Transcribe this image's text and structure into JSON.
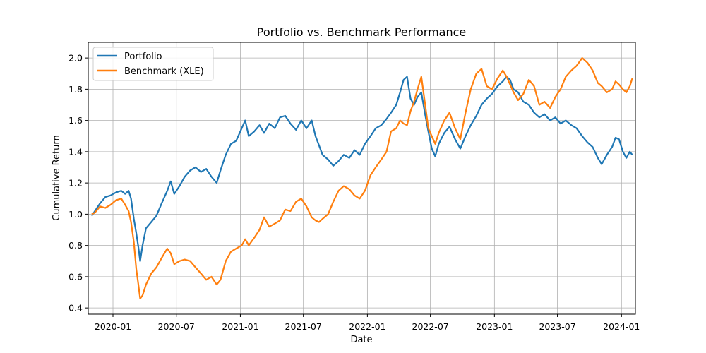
{
  "chart_data": {
    "type": "line",
    "title": "Portfolio vs. Benchmark Performance",
    "xlabel": "Date",
    "ylabel": "Cumulative Return",
    "x_range": [
      "2019-10-22",
      "2024-02-10"
    ],
    "ylim": [
      0.36,
      2.1
    ],
    "x_ticks": [
      "2020-01",
      "2020-07",
      "2021-01",
      "2021-07",
      "2022-01",
      "2022-07",
      "2023-01",
      "2023-07",
      "2024-01"
    ],
    "y_ticks": [
      0.4,
      0.6,
      0.8,
      1.0,
      1.2,
      1.4,
      1.6,
      1.8,
      2.0
    ],
    "grid": true,
    "legend_position": "top-left",
    "series": [
      {
        "name": "Portfolio",
        "color": "#1f77b4",
        "points": [
          [
            "2019-11-01",
            0.99
          ],
          [
            "2019-11-10",
            1.02
          ],
          [
            "2019-11-25",
            1.07
          ],
          [
            "2019-12-10",
            1.11
          ],
          [
            "2019-12-25",
            1.12
          ],
          [
            "2020-01-10",
            1.14
          ],
          [
            "2020-01-25",
            1.15
          ],
          [
            "2020-02-05",
            1.13
          ],
          [
            "2020-02-15",
            1.15
          ],
          [
            "2020-02-22",
            1.1
          ],
          [
            "2020-03-01",
            0.97
          ],
          [
            "2020-03-08",
            0.88
          ],
          [
            "2020-03-14",
            0.79
          ],
          [
            "2020-03-19",
            0.7
          ],
          [
            "2020-03-26",
            0.8
          ],
          [
            "2020-04-05",
            0.91
          ],
          [
            "2020-04-20",
            0.95
          ],
          [
            "2020-05-05",
            0.99
          ],
          [
            "2020-05-20",
            1.07
          ],
          [
            "2020-06-05",
            1.15
          ],
          [
            "2020-06-15",
            1.21
          ],
          [
            "2020-06-25",
            1.13
          ],
          [
            "2020-07-10",
            1.18
          ],
          [
            "2020-07-25",
            1.24
          ],
          [
            "2020-08-10",
            1.28
          ],
          [
            "2020-08-25",
            1.3
          ],
          [
            "2020-09-10",
            1.27
          ],
          [
            "2020-09-25",
            1.29
          ],
          [
            "2020-10-10",
            1.24
          ],
          [
            "2020-10-25",
            1.2
          ],
          [
            "2020-11-05",
            1.28
          ],
          [
            "2020-11-20",
            1.38
          ],
          [
            "2020-12-05",
            1.45
          ],
          [
            "2020-12-20",
            1.47
          ],
          [
            "2021-01-05",
            1.55
          ],
          [
            "2021-01-15",
            1.6
          ],
          [
            "2021-01-25",
            1.5
          ],
          [
            "2021-02-10",
            1.53
          ],
          [
            "2021-02-25",
            1.57
          ],
          [
            "2021-03-10",
            1.52
          ],
          [
            "2021-03-25",
            1.58
          ],
          [
            "2021-04-10",
            1.55
          ],
          [
            "2021-04-25",
            1.62
          ],
          [
            "2021-05-10",
            1.63
          ],
          [
            "2021-05-25",
            1.58
          ],
          [
            "2021-06-10",
            1.54
          ],
          [
            "2021-06-25",
            1.6
          ],
          [
            "2021-07-10",
            1.55
          ],
          [
            "2021-07-25",
            1.6
          ],
          [
            "2021-08-05",
            1.5
          ],
          [
            "2021-08-15",
            1.44
          ],
          [
            "2021-08-25",
            1.38
          ],
          [
            "2021-09-10",
            1.35
          ],
          [
            "2021-09-25",
            1.31
          ],
          [
            "2021-10-10",
            1.34
          ],
          [
            "2021-10-25",
            1.38
          ],
          [
            "2021-11-10",
            1.36
          ],
          [
            "2021-11-25",
            1.41
          ],
          [
            "2021-12-10",
            1.38
          ],
          [
            "2021-12-25",
            1.45
          ],
          [
            "2022-01-10",
            1.5
          ],
          [
            "2022-01-25",
            1.55
          ],
          [
            "2022-02-10",
            1.57
          ],
          [
            "2022-02-25",
            1.61
          ],
          [
            "2022-03-10",
            1.65
          ],
          [
            "2022-03-25",
            1.7
          ],
          [
            "2022-04-05",
            1.78
          ],
          [
            "2022-04-15",
            1.86
          ],
          [
            "2022-04-25",
            1.88
          ],
          [
            "2022-05-05",
            1.74
          ],
          [
            "2022-05-15",
            1.7
          ],
          [
            "2022-05-25",
            1.75
          ],
          [
            "2022-06-05",
            1.78
          ],
          [
            "2022-06-15",
            1.65
          ],
          [
            "2022-06-25",
            1.53
          ],
          [
            "2022-07-05",
            1.42
          ],
          [
            "2022-07-15",
            1.37
          ],
          [
            "2022-07-25",
            1.45
          ],
          [
            "2022-08-10",
            1.52
          ],
          [
            "2022-08-25",
            1.56
          ],
          [
            "2022-09-10",
            1.48
          ],
          [
            "2022-09-25",
            1.42
          ],
          [
            "2022-10-10",
            1.5
          ],
          [
            "2022-10-25",
            1.57
          ],
          [
            "2022-11-10",
            1.63
          ],
          [
            "2022-11-25",
            1.7
          ],
          [
            "2022-12-10",
            1.74
          ],
          [
            "2022-12-25",
            1.77
          ],
          [
            "2023-01-10",
            1.82
          ],
          [
            "2023-01-25",
            1.85
          ],
          [
            "2023-02-05",
            1.88
          ],
          [
            "2023-02-15",
            1.86
          ],
          [
            "2023-02-25",
            1.8
          ],
          [
            "2023-03-10",
            1.78
          ],
          [
            "2023-03-25",
            1.72
          ],
          [
            "2023-04-10",
            1.7
          ],
          [
            "2023-04-25",
            1.65
          ],
          [
            "2023-05-10",
            1.62
          ],
          [
            "2023-05-25",
            1.64
          ],
          [
            "2023-06-10",
            1.6
          ],
          [
            "2023-06-25",
            1.62
          ],
          [
            "2023-07-10",
            1.58
          ],
          [
            "2023-07-25",
            1.6
          ],
          [
            "2023-08-10",
            1.57
          ],
          [
            "2023-08-25",
            1.55
          ],
          [
            "2023-09-10",
            1.5
          ],
          [
            "2023-09-25",
            1.46
          ],
          [
            "2023-10-10",
            1.43
          ],
          [
            "2023-10-25",
            1.36
          ],
          [
            "2023-11-05",
            1.32
          ],
          [
            "2023-11-20",
            1.38
          ],
          [
            "2023-12-05",
            1.43
          ],
          [
            "2023-12-15",
            1.49
          ],
          [
            "2023-12-25",
            1.48
          ],
          [
            "2024-01-05",
            1.4
          ],
          [
            "2024-01-15",
            1.36
          ],
          [
            "2024-01-25",
            1.4
          ],
          [
            "2024-02-01",
            1.38
          ]
        ]
      },
      {
        "name": "Benchmark (XLE)",
        "color": "#ff7f0e",
        "points": [
          [
            "2019-11-01",
            1.0
          ],
          [
            "2019-11-10",
            1.01
          ],
          [
            "2019-11-25",
            1.05
          ],
          [
            "2019-12-10",
            1.04
          ],
          [
            "2019-12-25",
            1.06
          ],
          [
            "2020-01-10",
            1.09
          ],
          [
            "2020-01-25",
            1.1
          ],
          [
            "2020-02-05",
            1.06
          ],
          [
            "2020-02-15",
            1.02
          ],
          [
            "2020-02-22",
            0.95
          ],
          [
            "2020-03-01",
            0.82
          ],
          [
            "2020-03-08",
            0.65
          ],
          [
            "2020-03-14",
            0.55
          ],
          [
            "2020-03-19",
            0.46
          ],
          [
            "2020-03-26",
            0.48
          ],
          [
            "2020-04-05",
            0.55
          ],
          [
            "2020-04-20",
            0.62
          ],
          [
            "2020-05-05",
            0.66
          ],
          [
            "2020-05-20",
            0.72
          ],
          [
            "2020-06-05",
            0.78
          ],
          [
            "2020-06-15",
            0.75
          ],
          [
            "2020-06-25",
            0.68
          ],
          [
            "2020-07-10",
            0.7
          ],
          [
            "2020-07-25",
            0.71
          ],
          [
            "2020-08-10",
            0.7
          ],
          [
            "2020-08-25",
            0.66
          ],
          [
            "2020-09-10",
            0.62
          ],
          [
            "2020-09-25",
            0.58
          ],
          [
            "2020-10-10",
            0.6
          ],
          [
            "2020-10-25",
            0.55
          ],
          [
            "2020-11-05",
            0.58
          ],
          [
            "2020-11-20",
            0.7
          ],
          [
            "2020-12-05",
            0.76
          ],
          [
            "2020-12-20",
            0.78
          ],
          [
            "2021-01-05",
            0.8
          ],
          [
            "2021-01-15",
            0.84
          ],
          [
            "2021-01-25",
            0.8
          ],
          [
            "2021-02-10",
            0.85
          ],
          [
            "2021-02-25",
            0.9
          ],
          [
            "2021-03-10",
            0.98
          ],
          [
            "2021-03-25",
            0.92
          ],
          [
            "2021-04-10",
            0.94
          ],
          [
            "2021-04-25",
            0.96
          ],
          [
            "2021-05-10",
            1.03
          ],
          [
            "2021-05-25",
            1.02
          ],
          [
            "2021-06-10",
            1.08
          ],
          [
            "2021-06-25",
            1.1
          ],
          [
            "2021-07-10",
            1.05
          ],
          [
            "2021-07-25",
            0.98
          ],
          [
            "2021-08-05",
            0.96
          ],
          [
            "2021-08-15",
            0.95
          ],
          [
            "2021-08-25",
            0.97
          ],
          [
            "2021-09-10",
            1.0
          ],
          [
            "2021-09-25",
            1.08
          ],
          [
            "2021-10-10",
            1.15
          ],
          [
            "2021-10-25",
            1.18
          ],
          [
            "2021-11-10",
            1.16
          ],
          [
            "2021-11-25",
            1.12
          ],
          [
            "2021-12-10",
            1.1
          ],
          [
            "2021-12-25",
            1.15
          ],
          [
            "2022-01-10",
            1.25
          ],
          [
            "2022-01-25",
            1.3
          ],
          [
            "2022-02-10",
            1.35
          ],
          [
            "2022-02-25",
            1.4
          ],
          [
            "2022-03-10",
            1.53
          ],
          [
            "2022-03-25",
            1.55
          ],
          [
            "2022-04-05",
            1.6
          ],
          [
            "2022-04-15",
            1.58
          ],
          [
            "2022-04-25",
            1.57
          ],
          [
            "2022-05-05",
            1.66
          ],
          [
            "2022-05-15",
            1.72
          ],
          [
            "2022-05-25",
            1.8
          ],
          [
            "2022-06-05",
            1.88
          ],
          [
            "2022-06-15",
            1.72
          ],
          [
            "2022-06-25",
            1.55
          ],
          [
            "2022-07-05",
            1.5
          ],
          [
            "2022-07-15",
            1.45
          ],
          [
            "2022-07-25",
            1.52
          ],
          [
            "2022-08-10",
            1.6
          ],
          [
            "2022-08-25",
            1.65
          ],
          [
            "2022-09-10",
            1.55
          ],
          [
            "2022-09-25",
            1.48
          ],
          [
            "2022-10-10",
            1.65
          ],
          [
            "2022-10-25",
            1.8
          ],
          [
            "2022-11-10",
            1.9
          ],
          [
            "2022-11-25",
            1.93
          ],
          [
            "2022-12-10",
            1.82
          ],
          [
            "2022-12-25",
            1.8
          ],
          [
            "2023-01-10",
            1.87
          ],
          [
            "2023-01-25",
            1.92
          ],
          [
            "2023-02-05",
            1.88
          ],
          [
            "2023-02-15",
            1.83
          ],
          [
            "2023-02-25",
            1.78
          ],
          [
            "2023-03-10",
            1.73
          ],
          [
            "2023-03-25",
            1.77
          ],
          [
            "2023-04-10",
            1.86
          ],
          [
            "2023-04-25",
            1.82
          ],
          [
            "2023-05-10",
            1.7
          ],
          [
            "2023-05-25",
            1.72
          ],
          [
            "2023-06-10",
            1.68
          ],
          [
            "2023-06-25",
            1.75
          ],
          [
            "2023-07-10",
            1.8
          ],
          [
            "2023-07-25",
            1.88
          ],
          [
            "2023-08-10",
            1.92
          ],
          [
            "2023-08-25",
            1.95
          ],
          [
            "2023-09-10",
            2.0
          ],
          [
            "2023-09-25",
            1.97
          ],
          [
            "2023-10-10",
            1.92
          ],
          [
            "2023-10-25",
            1.84
          ],
          [
            "2023-11-05",
            1.82
          ],
          [
            "2023-11-20",
            1.78
          ],
          [
            "2023-12-05",
            1.8
          ],
          [
            "2023-12-15",
            1.85
          ],
          [
            "2023-12-25",
            1.83
          ],
          [
            "2024-01-05",
            1.8
          ],
          [
            "2024-01-15",
            1.78
          ],
          [
            "2024-01-25",
            1.82
          ],
          [
            "2024-02-01",
            1.87
          ]
        ]
      }
    ]
  }
}
